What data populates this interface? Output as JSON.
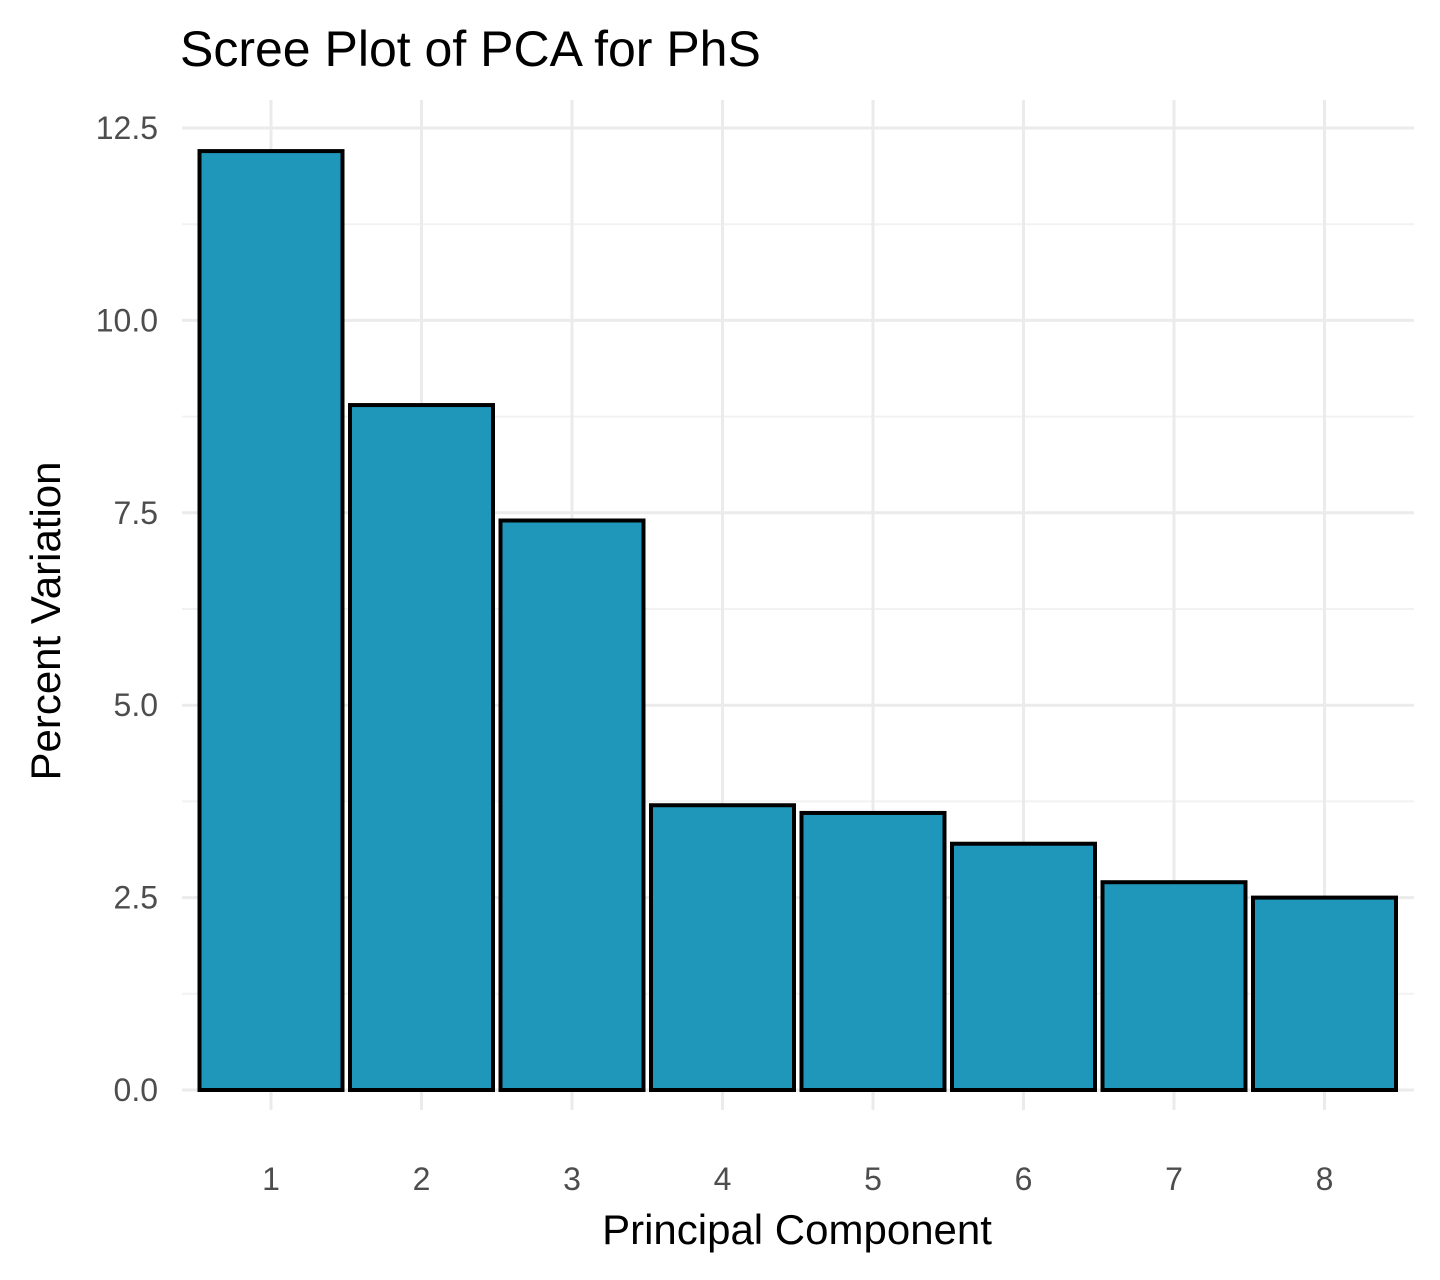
{
  "chart_data": {
    "type": "bar",
    "title": "Scree Plot of PCA for PhS",
    "xlabel": "Principal Component",
    "ylabel": "Percent Variation",
    "categories": [
      "1",
      "2",
      "3",
      "4",
      "5",
      "6",
      "7",
      "8"
    ],
    "values": [
      12.2,
      8.9,
      7.4,
      3.7,
      3.6,
      3.2,
      2.7,
      2.5
    ],
    "ylim": [
      0,
      12.5
    ],
    "yticks": [
      "0.0",
      "2.5",
      "5.0",
      "7.5",
      "10.0",
      "12.5"
    ],
    "grid": true,
    "legend": "none",
    "colors": {
      "bar_fill": "#1f97bb",
      "bar_outline": "#000000"
    }
  }
}
